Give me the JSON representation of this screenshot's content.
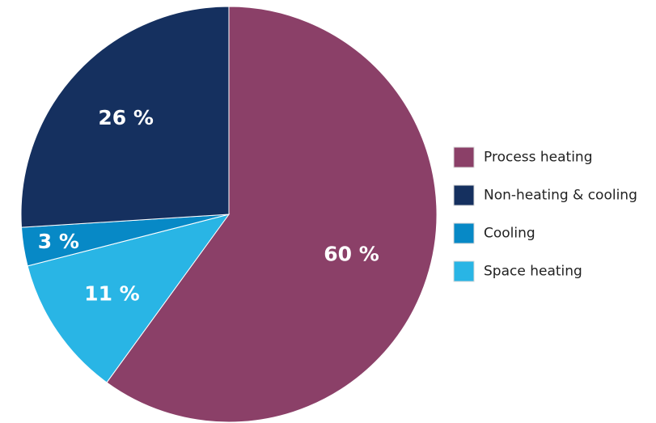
{
  "chart_data": {
    "type": "pie",
    "slices": [
      {
        "label": "Process heating",
        "value": 60,
        "display": "60 %",
        "color": "#8B4068"
      },
      {
        "label": "Space heating",
        "value": 11,
        "display": "11 %",
        "color": "#29B5E5"
      },
      {
        "label": "Cooling",
        "value": 3,
        "display": "3 %",
        "color": "#0789C6"
      },
      {
        "label": "Non-heating & cooling",
        "value": 26,
        "display": "26 %",
        "color": "#15305F"
      }
    ],
    "legend": [
      "Process heating",
      "Non-heating & cooling",
      "Cooling",
      "Space heating"
    ],
    "legend_position": "right",
    "start": "top",
    "direction": "clockwise"
  }
}
